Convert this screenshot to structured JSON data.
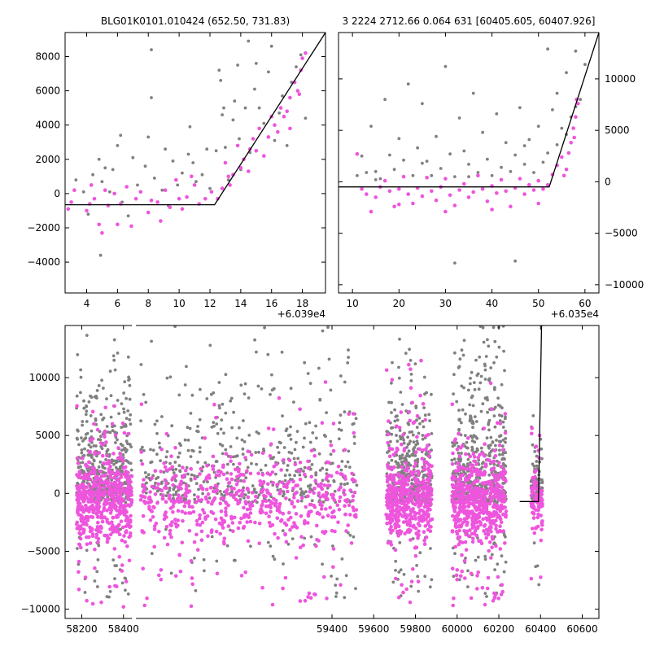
{
  "titles": {
    "left": "BLG01K0101.010424 (652.50, 731.83)",
    "right": "3 2224 2712.66 0.064 631 [60405.605, 60407.926]"
  },
  "colors": {
    "grey": "#808080",
    "magenta": "#ee55dd",
    "model": "#000000"
  },
  "chart_data": [
    {
      "type": "scatter",
      "xlim": [
        2.6,
        19.5
      ],
      "ylim": [
        -5800,
        9400
      ],
      "x_offset_label": "+6.039e4",
      "xticks": [
        4,
        6,
        8,
        10,
        12,
        14,
        16,
        18
      ],
      "yticks": [
        -4000,
        -2000,
        0,
        2000,
        4000,
        6000,
        8000
      ],
      "ytick_side": "left",
      "model_line": {
        "x": [
          2.6,
          12.3,
          19.5
        ],
        "y": [
          -650,
          -650,
          9400
        ]
      },
      "grey_points": [
        [
          3.3,
          800
        ],
        [
          3.8,
          100
        ],
        [
          4.1,
          -1200
        ],
        [
          4.4,
          1100
        ],
        [
          4.8,
          2000
        ],
        [
          5.0,
          700
        ],
        [
          5.2,
          1500
        ],
        [
          4.9,
          -3600
        ],
        [
          5.7,
          1400
        ],
        [
          6.0,
          2800
        ],
        [
          6.2,
          3400
        ],
        [
          6.3,
          -500
        ],
        [
          7.0,
          2100
        ],
        [
          7.3,
          500
        ],
        [
          7.8,
          1600
        ],
        [
          8.0,
          3300
        ],
        [
          8.2,
          8400
        ],
        [
          8.2,
          5600
        ],
        [
          8.4,
          900
        ],
        [
          8.9,
          200
        ],
        [
          9.1,
          2600
        ],
        [
          9.6,
          1900
        ],
        [
          9.9,
          500
        ],
        [
          10.2,
          1200
        ],
        [
          10.6,
          2300
        ],
        [
          10.7,
          3900
        ],
        [
          10.9,
          1800
        ],
        [
          11.1,
          700
        ],
        [
          11.8,
          2600
        ],
        [
          12.4,
          2500
        ],
        [
          12.6,
          7200
        ],
        [
          12.7,
          6600
        ],
        [
          12.8,
          4600
        ],
        [
          12.9,
          5000
        ],
        [
          13.0,
          2700
        ],
        [
          13.2,
          800
        ],
        [
          13.5,
          4300
        ],
        [
          13.6,
          5400
        ],
        [
          13.8,
          7500
        ],
        [
          13.9,
          3200
        ],
        [
          14.0,
          1400
        ],
        [
          14.3,
          5000
        ],
        [
          14.5,
          8900
        ],
        [
          14.6,
          2400
        ],
        [
          14.9,
          6100
        ],
        [
          15.2,
          5000
        ],
        [
          15.5,
          4100
        ],
        [
          15.8,
          7100
        ],
        [
          16.2,
          3100
        ],
        [
          16.5,
          4700
        ],
        [
          16.7,
          5700
        ],
        [
          17.0,
          2800
        ],
        [
          17.3,
          6500
        ],
        [
          17.6,
          7400
        ],
        [
          17.9,
          8100
        ],
        [
          18.2,
          4400
        ],
        [
          5.5,
          100
        ],
        [
          6.7,
          -1300
        ],
        [
          9.3,
          -700
        ],
        [
          11.5,
          1100
        ],
        [
          12.0,
          300
        ],
        [
          15.0,
          7600
        ],
        [
          16.0,
          8600
        ]
      ],
      "magenta_points": [
        [
          2.8,
          -900
        ],
        [
          3.0,
          -500
        ],
        [
          3.2,
          200
        ],
        [
          4.0,
          -1000
        ],
        [
          4.2,
          -600
        ],
        [
          4.3,
          500
        ],
        [
          4.5,
          -300
        ],
        [
          4.8,
          -1800
        ],
        [
          5.0,
          -2300
        ],
        [
          5.2,
          200
        ],
        [
          5.4,
          -700
        ],
        [
          5.8,
          0
        ],
        [
          6.0,
          -1800
        ],
        [
          6.2,
          -600
        ],
        [
          6.6,
          400
        ],
        [
          6.9,
          -1900
        ],
        [
          7.2,
          -300
        ],
        [
          7.5,
          100
        ],
        [
          8.0,
          -1100
        ],
        [
          8.2,
          -400
        ],
        [
          8.6,
          -500
        ],
        [
          8.8,
          -1600
        ],
        [
          9.1,
          200
        ],
        [
          9.4,
          -800
        ],
        [
          9.8,
          800
        ],
        [
          10.0,
          -300
        ],
        [
          10.2,
          -900
        ],
        [
          10.5,
          -200
        ],
        [
          10.8,
          1000
        ],
        [
          11.0,
          500
        ],
        [
          11.3,
          -600
        ],
        [
          11.7,
          -300
        ],
        [
          12.1,
          100
        ],
        [
          12.5,
          -300
        ],
        [
          12.8,
          300
        ],
        [
          13.0,
          1800
        ],
        [
          13.3,
          500
        ],
        [
          13.5,
          1100
        ],
        [
          13.8,
          2800
        ],
        [
          14.0,
          1500
        ],
        [
          14.2,
          2000
        ],
        [
          14.5,
          1300
        ],
        [
          14.8,
          3200
        ],
        [
          15.0,
          2500
        ],
        [
          15.2,
          3800
        ],
        [
          15.5,
          2200
        ],
        [
          15.8,
          3300
        ],
        [
          16.0,
          4500
        ],
        [
          16.2,
          4000
        ],
        [
          16.4,
          3600
        ],
        [
          16.6,
          5000
        ],
        [
          16.8,
          4500
        ],
        [
          17.0,
          4800
        ],
        [
          17.2,
          5600
        ],
        [
          17.5,
          6500
        ],
        [
          17.7,
          6000
        ],
        [
          17.9,
          7200
        ],
        [
          18.0,
          7900
        ],
        [
          18.2,
          8200
        ],
        [
          17.8,
          5800
        ],
        [
          17.2,
          3800
        ],
        [
          13.2,
          1000
        ],
        [
          14.6,
          2600
        ]
      ]
    },
    {
      "type": "scatter",
      "xlim": [
        7,
        63
      ],
      "ylim": [
        -10800,
        14500
      ],
      "x_offset_label": "+6.035e4",
      "xticks": [
        10,
        20,
        30,
        40,
        50,
        60
      ],
      "yticks": [
        -10000,
        -5000,
        0,
        5000,
        10000
      ],
      "ytick_side": "right",
      "model_line": {
        "x": [
          7,
          52.3,
          63
        ],
        "y": [
          -500,
          -500,
          14500
        ]
      },
      "grey_points": [
        [
          11,
          600
        ],
        [
          12,
          2500
        ],
        [
          13,
          900
        ],
        [
          14,
          5400
        ],
        [
          15,
          1000
        ],
        [
          16,
          300
        ],
        [
          17,
          8000
        ],
        [
          18,
          2600
        ],
        [
          19,
          1200
        ],
        [
          20,
          4200
        ],
        [
          21,
          2100
        ],
        [
          22,
          9500
        ],
        [
          23,
          600
        ],
        [
          24,
          3300
        ],
        [
          25,
          7600
        ],
        [
          26,
          2000
        ],
        [
          27,
          600
        ],
        [
          28,
          4400
        ],
        [
          29,
          1300
        ],
        [
          30,
          11200
        ],
        [
          31,
          2700
        ],
        [
          32,
          500
        ],
        [
          33,
          6200
        ],
        [
          34,
          3000
        ],
        [
          35,
          1700
        ],
        [
          36,
          8600
        ],
        [
          37,
          900
        ],
        [
          38,
          4800
        ],
        [
          39,
          2200
        ],
        [
          40,
          600
        ],
        [
          41,
          6600
        ],
        [
          42,
          1400
        ],
        [
          43,
          3800
        ],
        [
          44,
          1000
        ],
        [
          45,
          2600
        ],
        [
          46,
          7200
        ],
        [
          47,
          1700
        ],
        [
          48,
          4100
        ],
        [
          49,
          900
        ],
        [
          50,
          5400
        ],
        [
          51,
          1900
        ],
        [
          52,
          2800
        ],
        [
          53,
          7000
        ],
        [
          54,
          3600
        ],
        [
          55,
          5200
        ],
        [
          56,
          10600
        ],
        [
          57,
          6300
        ],
        [
          58,
          12700
        ],
        [
          59,
          8000
        ],
        [
          60,
          11400
        ],
        [
          32,
          -7900
        ],
        [
          45,
          -7700
        ],
        [
          52,
          12900
        ],
        [
          54,
          8600
        ],
        [
          56,
          4600
        ],
        [
          58,
          7300
        ],
        [
          15,
          200
        ],
        [
          25,
          1800
        ],
        [
          35,
          500
        ],
        [
          47,
          3500
        ]
      ],
      "magenta_points": [
        [
          11,
          2700
        ],
        [
          12,
          -700
        ],
        [
          13,
          -1200
        ],
        [
          14,
          -2900
        ],
        [
          15,
          -1500
        ],
        [
          16,
          -500
        ],
        [
          17,
          100
        ],
        [
          18,
          -900
        ],
        [
          19,
          -2400
        ],
        [
          20,
          -700
        ],
        [
          21,
          500
        ],
        [
          22,
          -1200
        ],
        [
          23,
          -2100
        ],
        [
          24,
          -600
        ],
        [
          25,
          -1400
        ],
        [
          26,
          400
        ],
        [
          27,
          -900
        ],
        [
          28,
          -1800
        ],
        [
          29,
          -500
        ],
        [
          30,
          300
        ],
        [
          31,
          -1300
        ],
        [
          32,
          -2300
        ],
        [
          33,
          -800
        ],
        [
          34,
          -200
        ],
        [
          35,
          -1500
        ],
        [
          36,
          -1000
        ],
        [
          37,
          600
        ],
        [
          38,
          -700
        ],
        [
          39,
          -1900
        ],
        [
          40,
          -400
        ],
        [
          41,
          -1100
        ],
        [
          42,
          200
        ],
        [
          43,
          -900
        ],
        [
          44,
          -2400
        ],
        [
          45,
          -600
        ],
        [
          46,
          300
        ],
        [
          47,
          -1200
        ],
        [
          48,
          -300
        ],
        [
          49,
          -800
        ],
        [
          50,
          100
        ],
        [
          51,
          -700
        ],
        [
          52,
          -300
        ],
        [
          53,
          700
        ],
        [
          54,
          1600
        ],
        [
          55,
          2400
        ],
        [
          56,
          1200
        ],
        [
          57,
          3800
        ],
        [
          57.5,
          5200
        ],
        [
          58,
          6300
        ],
        [
          58.5,
          7600
        ],
        [
          58.2,
          8000
        ],
        [
          57.7,
          4300
        ],
        [
          56.5,
          2800
        ],
        [
          55.5,
          600
        ],
        [
          20,
          -2200
        ],
        [
          30,
          -2900
        ],
        [
          40,
          -2700
        ],
        [
          50,
          -2100
        ]
      ]
    },
    {
      "type": "scatter",
      "xlim": [
        58120,
        60680
      ],
      "ylim": [
        -10800,
        14500
      ],
      "xticks": [
        58200,
        58400,
        59400,
        59600,
        59800,
        60000,
        60200,
        60400,
        60600
      ],
      "yticks": [
        -10000,
        -5000,
        0,
        5000,
        10000
      ],
      "ytick_side": "left",
      "model_line": {
        "x": [
          60300,
          60390,
          60405,
          60420
        ],
        "y": [
          -700,
          -700,
          14500,
          14500
        ]
      },
      "gap_marker_x": 58450,
      "seasons": [
        {
          "start": 58175,
          "end": 58440,
          "grey_count": 420,
          "magenta_count": 520,
          "grey_spread": 6000,
          "magenta_spread": 1800,
          "grey_max": 14500
        },
        {
          "start": 58480,
          "end": 59520,
          "grey_count": 500,
          "magenta_count": 600,
          "grey_spread": 6000,
          "magenta_spread": 1800,
          "grey_max": 14500
        },
        {
          "start": 59660,
          "end": 59880,
          "grey_count": 380,
          "magenta_count": 480,
          "grey_spread": 5200,
          "magenta_spread": 1800,
          "grey_max": 14500
        },
        {
          "start": 59975,
          "end": 60235,
          "grey_count": 480,
          "magenta_count": 560,
          "grey_spread": 6500,
          "magenta_spread": 1800,
          "grey_max": 14500
        },
        {
          "start": 60355,
          "end": 60410,
          "grey_count": 90,
          "magenta_count": 90,
          "grey_spread": 3000,
          "magenta_spread": 1500,
          "grey_max": 14500
        }
      ]
    }
  ]
}
